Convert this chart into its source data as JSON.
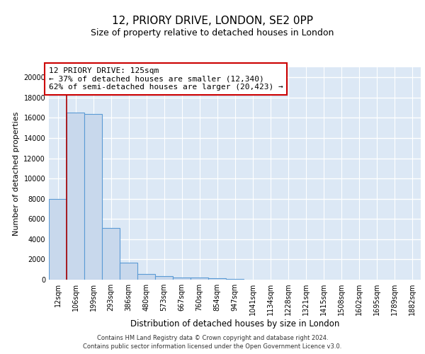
{
  "title1": "12, PRIORY DRIVE, LONDON, SE2 0PP",
  "title2": "Size of property relative to detached houses in London",
  "xlabel": "Distribution of detached houses by size in London",
  "ylabel": "Number of detached properties",
  "categories": [
    "12sqm",
    "106sqm",
    "199sqm",
    "293sqm",
    "386sqm",
    "480sqm",
    "573sqm",
    "667sqm",
    "760sqm",
    "854sqm",
    "947sqm",
    "1041sqm",
    "1134sqm",
    "1228sqm",
    "1321sqm",
    "1415sqm",
    "1508sqm",
    "1602sqm",
    "1695sqm",
    "1789sqm",
    "1882sqm"
  ],
  "values": [
    8000,
    16500,
    16400,
    5100,
    1700,
    550,
    380,
    220,
    180,
    130,
    50,
    0,
    0,
    0,
    0,
    0,
    0,
    0,
    0,
    0,
    0
  ],
  "bar_color": "#c8d8ec",
  "bar_edge_color": "#5b9bd5",
  "vline_x_pos": 0.5,
  "vline_color": "#aa0000",
  "ylim": [
    0,
    21000
  ],
  "yticks": [
    0,
    2000,
    4000,
    6000,
    8000,
    10000,
    12000,
    14000,
    16000,
    18000,
    20000
  ],
  "annotation_title": "12 PRIORY DRIVE: 125sqm",
  "annotation_line1": "← 37% of detached houses are smaller (12,340)",
  "annotation_line2": "62% of semi-detached houses are larger (20,423) →",
  "annotation_box_color": "#ffffff",
  "annotation_box_edge": "#cc0000",
  "footer1": "Contains HM Land Registry data © Crown copyright and database right 2024.",
  "footer2": "Contains public sector information licensed under the Open Government Licence v3.0.",
  "plot_bg_color": "#dce8f5",
  "grid_color": "#ffffff",
  "title1_fontsize": 11,
  "title2_fontsize": 9,
  "xlabel_fontsize": 8.5,
  "ylabel_fontsize": 8,
  "tick_fontsize": 7,
  "ann_fontsize": 8
}
